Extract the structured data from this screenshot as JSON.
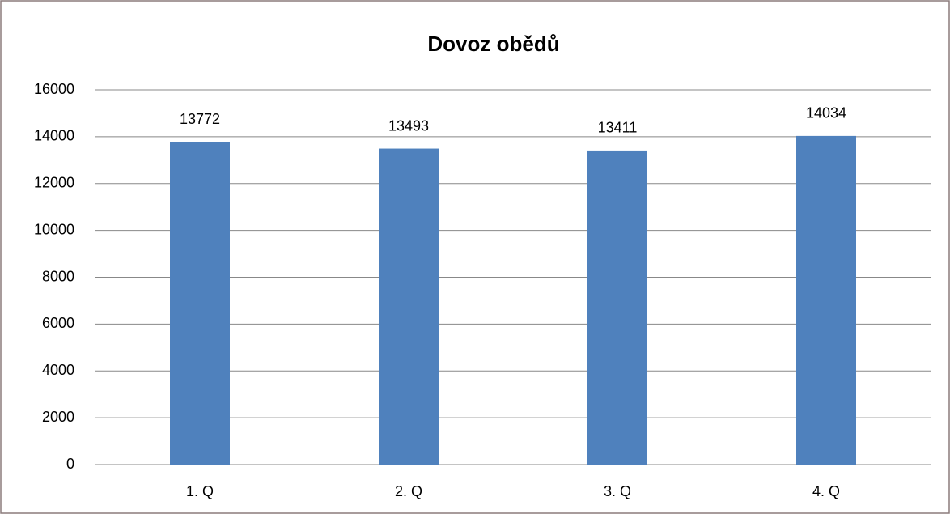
{
  "chart_data": {
    "type": "bar",
    "title": "Dovoz obědů",
    "categories": [
      "1. Q",
      "2. Q",
      "3. Q",
      "4. Q"
    ],
    "values": [
      13772,
      13493,
      13411,
      14034
    ],
    "color": "#4f81bd",
    "ylim": [
      0,
      16000
    ],
    "yticks": [
      0,
      2000,
      4000,
      6000,
      8000,
      10000,
      12000,
      14000,
      16000
    ],
    "grid": true
  }
}
